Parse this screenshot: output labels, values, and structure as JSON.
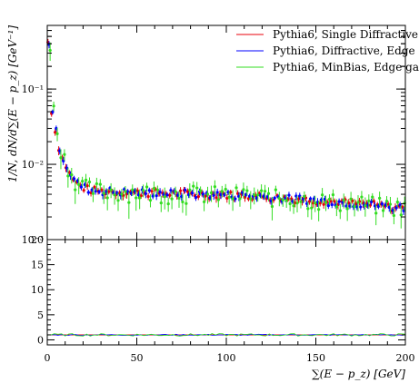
{
  "chart_data": [
    {
      "type": "scatter",
      "panel": "main",
      "xlabel": "∑(E − p_z) [GeV]",
      "ylabel": "1/N, dN/d∑(E − p_z) [GeV⁻¹]",
      "xlim": [
        0,
        200
      ],
      "ylim": [
        0.001,
        0.7
      ],
      "yscale": "log",
      "x_ticks": [
        "0",
        "50",
        "100",
        "150",
        "200"
      ],
      "y_ticks": [
        "10⁻³",
        "10⁻²",
        "10⁻¹"
      ],
      "legend_position": "top-right",
      "colors": {
        "red": "#e8000b",
        "blue": "#0000ff",
        "green": "#33dd22"
      },
      "series": [
        {
          "name": "Pythia6, Single Diffractive",
          "color": "#e8000b"
        },
        {
          "name": "Pythia6, Diffractive, Edge",
          "color": "#0000ff"
        },
        {
          "name": "Pythia6, MinBias, Edge ga",
          "color": "#33dd22"
        }
      ],
      "x": [
        1,
        3,
        5,
        7,
        9,
        11,
        13,
        15,
        17,
        19,
        21,
        23,
        25,
        27,
        29,
        31,
        33,
        35,
        37,
        39,
        41,
        43,
        45,
        47,
        49,
        51,
        53,
        55,
        57,
        59,
        61,
        63,
        65,
        67,
        69,
        71,
        73,
        75,
        77,
        79,
        81,
        83,
        85,
        87,
        89,
        91,
        93,
        95,
        97,
        99,
        101,
        103,
        105,
        107,
        109,
        111,
        113,
        115,
        117,
        119,
        121,
        123,
        125,
        127,
        129,
        131,
        133,
        135,
        137,
        139,
        141,
        143,
        145,
        147,
        149,
        151,
        153,
        155,
        157,
        159,
        161,
        163,
        165,
        167,
        169,
        171,
        173,
        175,
        177,
        179,
        181,
        183,
        185,
        187,
        189,
        191,
        193,
        195,
        197,
        199
      ],
      "y_base": [
        0.42,
        0.052,
        0.027,
        0.017,
        0.012,
        0.0095,
        0.0075,
        0.0063,
        0.0056,
        0.0052,
        0.0049,
        0.0047,
        0.0046,
        0.0045,
        0.0045,
        0.0044,
        0.0044,
        0.0044,
        0.0043,
        0.0043,
        0.0043,
        0.0043,
        0.0043,
        0.0043,
        0.0042,
        0.0042,
        0.0042,
        0.0042,
        0.0042,
        0.0042,
        0.0042,
        0.0042,
        0.0042,
        0.0041,
        0.0041,
        0.0041,
        0.0041,
        0.0041,
        0.0041,
        0.0041,
        0.0041,
        0.004,
        0.004,
        0.004,
        0.004,
        0.004,
        0.004,
        0.004,
        0.004,
        0.004,
        0.0039,
        0.0039,
        0.0039,
        0.0039,
        0.0039,
        0.0039,
        0.0038,
        0.0038,
        0.0038,
        0.0038,
        0.0037,
        0.0037,
        0.0037,
        0.0036,
        0.0036,
        0.0036,
        0.0036,
        0.0035,
        0.0035,
        0.0035,
        0.0035,
        0.0034,
        0.0034,
        0.0034,
        0.0034,
        0.0033,
        0.0033,
        0.0033,
        0.0032,
        0.0032,
        0.0032,
        0.0032,
        0.0031,
        0.0031,
        0.0031,
        0.003,
        0.003,
        0.003,
        0.003,
        0.0029,
        0.0029,
        0.0029,
        0.0028,
        0.0028,
        0.0028,
        0.0027,
        0.0027,
        0.0027,
        0.0027,
        0.0026
      ]
    },
    {
      "type": "line",
      "panel": "ratio",
      "xlim": [
        0,
        200
      ],
      "ylim": [
        -1,
        20
      ],
      "y_ticks": [
        "0",
        "5",
        "10",
        "15",
        "20"
      ],
      "x": [
        0,
        200
      ],
      "series": [
        {
          "name": "Pythia6, Single Diffractive",
          "values": [
            1,
            1
          ]
        },
        {
          "name": "Pythia6, Diffractive, Edge",
          "values": [
            1,
            1
          ]
        },
        {
          "name": "Pythia6, MinBias, Edge ga",
          "values": [
            1,
            1
          ]
        }
      ]
    }
  ]
}
